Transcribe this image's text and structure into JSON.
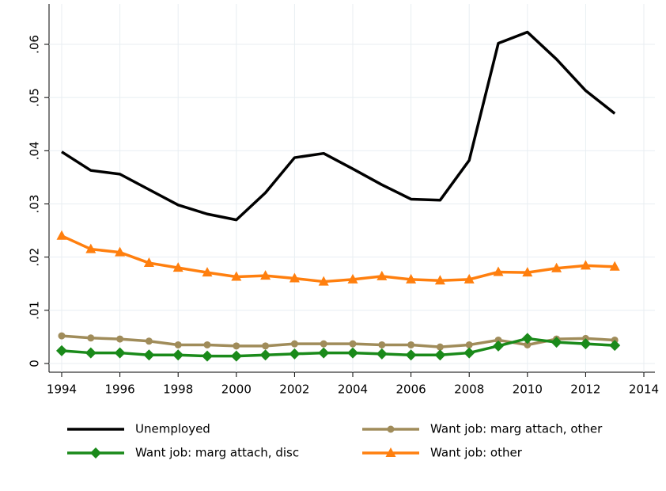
{
  "chart_data": {
    "type": "line",
    "x": [
      1994,
      1995,
      1996,
      1997,
      1998,
      1999,
      2000,
      2001,
      2002,
      2003,
      2004,
      2005,
      2006,
      2007,
      2008,
      2009,
      2010,
      2011,
      2012,
      2013
    ],
    "series": [
      {
        "name": "Unemployed",
        "color": "#000000",
        "marker": "none",
        "values": [
          0.0398,
          0.0363,
          0.0356,
          0.0327,
          0.0298,
          0.0281,
          0.027,
          0.0321,
          0.0387,
          0.0395,
          0.0366,
          0.0336,
          0.0309,
          0.0307,
          0.0382,
          0.0602,
          0.0623,
          0.0572,
          0.0513,
          0.047
        ]
      },
      {
        "name": "Want job: marg attach, other",
        "color": "#a08c5a",
        "marker": "circle",
        "values": [
          0.0052,
          0.0048,
          0.0046,
          0.0042,
          0.0035,
          0.0035,
          0.0033,
          0.0033,
          0.0037,
          0.0037,
          0.0037,
          0.0035,
          0.0035,
          0.0031,
          0.0035,
          0.0044,
          0.0035,
          0.0046,
          0.0047,
          0.0044
        ]
      },
      {
        "name": "Want job: marg attach, disc",
        "color": "#1a8a1a",
        "marker": "diamond",
        "values": [
          0.0024,
          0.002,
          0.002,
          0.0016,
          0.0016,
          0.0014,
          0.0014,
          0.0016,
          0.0018,
          0.002,
          0.002,
          0.0018,
          0.0016,
          0.0016,
          0.002,
          0.0033,
          0.0047,
          0.004,
          0.0037,
          0.0034
        ]
      },
      {
        "name": "Want job: other",
        "color": "#ff7f0e",
        "marker": "triangle",
        "values": [
          0.024,
          0.0215,
          0.0209,
          0.0189,
          0.018,
          0.0171,
          0.0163,
          0.0165,
          0.016,
          0.0154,
          0.0158,
          0.0164,
          0.0158,
          0.0156,
          0.0158,
          0.0172,
          0.0171,
          0.0179,
          0.0184,
          0.0182
        ]
      }
    ],
    "xlim": [
      1994,
      2014
    ],
    "xticks": [
      1994,
      1996,
      1998,
      2000,
      2002,
      2004,
      2006,
      2008,
      2010,
      2012,
      2014
    ],
    "ylim": [
      0,
      0.06
    ],
    "yticks": [
      0,
      {
        "value": 0.01,
        "label": ".01"
      },
      {
        "value": 0.02,
        "label": ".02"
      },
      {
        "value": 0.03,
        "label": ".03"
      },
      {
        "value": 0.04,
        "label": ".04"
      },
      {
        "value": 0.05,
        "label": ".05"
      },
      {
        "value": 0.06,
        "label": ".06"
      }
    ],
    "grid": true
  }
}
